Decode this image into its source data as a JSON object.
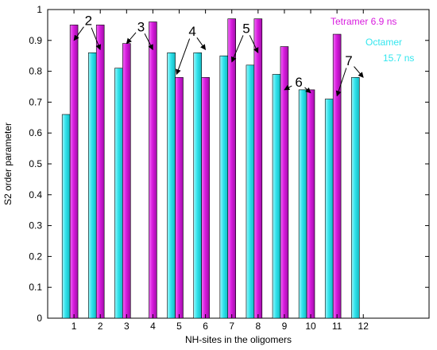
{
  "chart_data": {
    "type": "bar",
    "xlabel": "NH-sites in the oligomers",
    "ylabel": "S2 order parameter",
    "ylim": [
      0,
      1
    ],
    "xlim": [
      0,
      14.5
    ],
    "yticks": [
      "0",
      "0.1",
      "0.2",
      "0.3",
      "0.4",
      "0.5",
      "0.6",
      "0.7",
      "0.8",
      "0.9",
      "1"
    ],
    "categories": [
      "1",
      "2",
      "3",
      "4",
      "5",
      "6",
      "7",
      "8",
      "9",
      "10",
      "11",
      "12"
    ],
    "grid": false,
    "series": [
      {
        "name_lines": [
          "Octamer",
          "15.7 ns"
        ],
        "color": "#33e6ee",
        "values": [
          0.66,
          0.86,
          0.81,
          null,
          0.86,
          0.86,
          0.85,
          0.82,
          0.79,
          0.74,
          0.71,
          0.78
        ]
      },
      {
        "name_lines": [
          "Tetramer 6.9 ns"
        ],
        "color": "#d81bde",
        "values": [
          0.95,
          0.95,
          0.89,
          0.96,
          0.78,
          0.78,
          0.97,
          0.97,
          0.88,
          0.74,
          0.92,
          null
        ]
      }
    ],
    "annotations": [
      {
        "label": "2",
        "x": 1.55,
        "y": 0.965,
        "arrows": [
          [
            1.0,
            0.9
          ],
          [
            2.0,
            0.87
          ]
        ]
      },
      {
        "label": "3",
        "x": 3.55,
        "y": 0.945,
        "arrows": [
          [
            3.0,
            0.89
          ],
          [
            4.0,
            0.87
          ]
        ]
      },
      {
        "label": "4",
        "x": 5.5,
        "y": 0.93,
        "arrows": [
          [
            4.9,
            0.79
          ],
          [
            6.0,
            0.87
          ]
        ]
      },
      {
        "label": "5",
        "x": 7.55,
        "y": 0.94,
        "arrows": [
          [
            7.0,
            0.83
          ],
          [
            8.0,
            0.86
          ]
        ]
      },
      {
        "label": "6",
        "x": 9.55,
        "y": 0.765,
        "arrows": [
          [
            9.0,
            0.74
          ],
          [
            10.0,
            0.73
          ]
        ]
      },
      {
        "label": "7",
        "x": 11.45,
        "y": 0.835,
        "arrows": [
          [
            11.0,
            0.72
          ],
          [
            12.0,
            0.78
          ]
        ]
      }
    ]
  }
}
